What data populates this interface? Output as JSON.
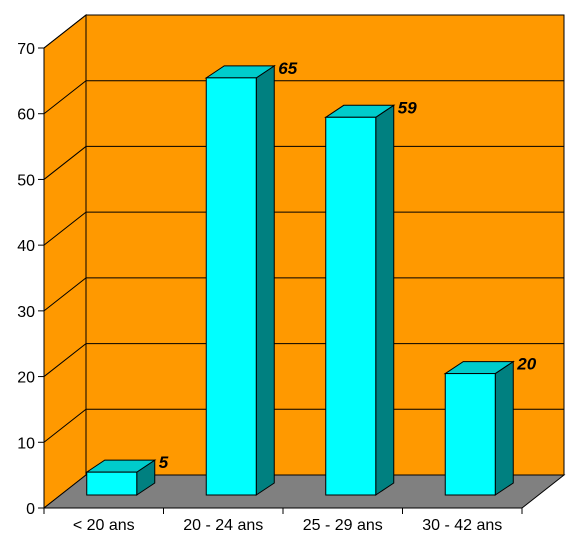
{
  "chart_data": {
    "type": "bar",
    "categories": [
      "< 20 ans",
      "20 - 24 ans",
      "25 - 29 ans",
      "30 - 42 ans"
    ],
    "values": [
      5,
      65,
      59,
      20
    ],
    "data_labels": [
      "5",
      "65",
      "59",
      "20"
    ],
    "y_ticks": [
      "0",
      "10",
      "20",
      "30",
      "40",
      "50",
      "60",
      "70"
    ],
    "ylim": [
      0,
      70
    ],
    "grid": true,
    "legend": "none",
    "title": "",
    "xlabel": "",
    "ylabel": "",
    "style": "3d-column"
  },
  "colors": {
    "back_wall": "#FF9900",
    "side_wall": "#FF9900",
    "floor": "#808080",
    "bar_front": "#00FFFF",
    "bar_top": "#00CCCC",
    "bar_side": "#008080",
    "gridline": "#000000"
  }
}
